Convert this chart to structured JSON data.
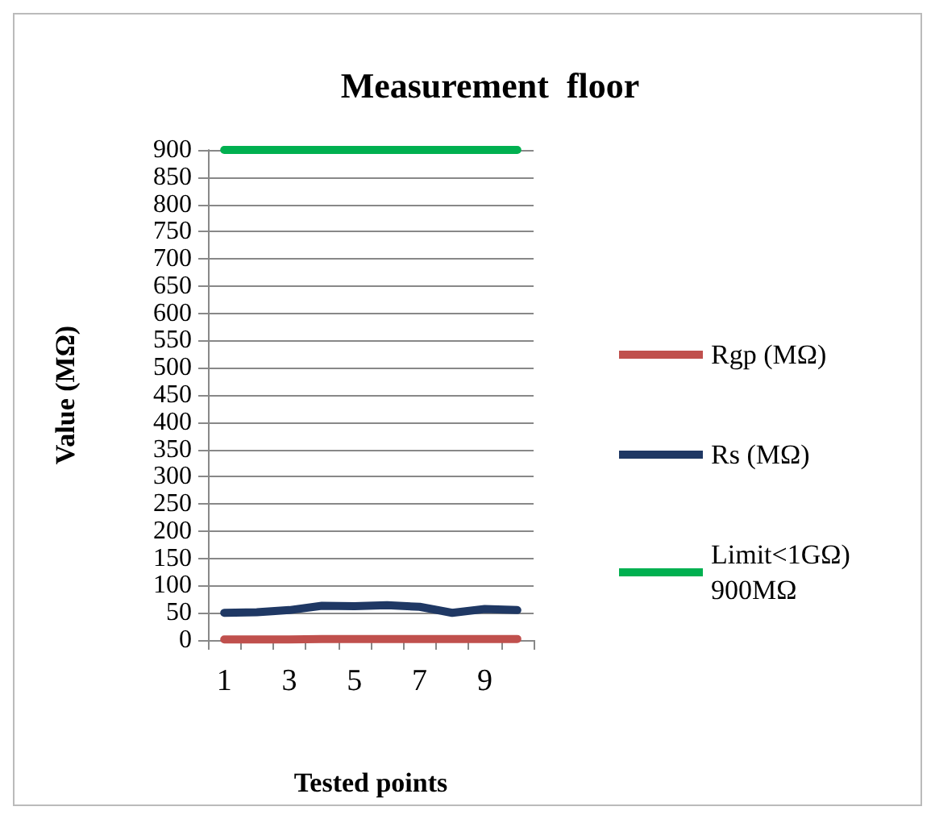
{
  "chart_data": {
    "type": "line",
    "title": "Measurement  floor",
    "xlabel": "Tested points",
    "ylabel": "Value (MΩ)",
    "categories": [
      "1",
      null,
      "3",
      null,
      "5",
      null,
      "7",
      null,
      "9",
      null
    ],
    "series": [
      {
        "name": "Rgp (MΩ)",
        "color": "#c0504d",
        "values": [
          1,
          1,
          1,
          2,
          2,
          2,
          2,
          2,
          2,
          2
        ]
      },
      {
        "name": "Rs (MΩ)",
        "color": "#1f3864",
        "values": [
          50,
          51,
          55,
          63,
          62,
          64,
          61,
          50,
          57,
          55
        ]
      },
      {
        "name": "Limit<1GΩ) 900MΩ",
        "color": "#00b050",
        "values": [
          900,
          900,
          900,
          900,
          900,
          900,
          900,
          900,
          900,
          900
        ]
      }
    ],
    "ylim": [
      0,
      900
    ],
    "yticks": [
      0,
      50,
      100,
      150,
      200,
      250,
      300,
      350,
      400,
      450,
      500,
      550,
      600,
      650,
      700,
      750,
      800,
      850,
      900
    ],
    "grid": "y",
    "legend": "right",
    "marker": "none",
    "line_style": "solid"
  }
}
